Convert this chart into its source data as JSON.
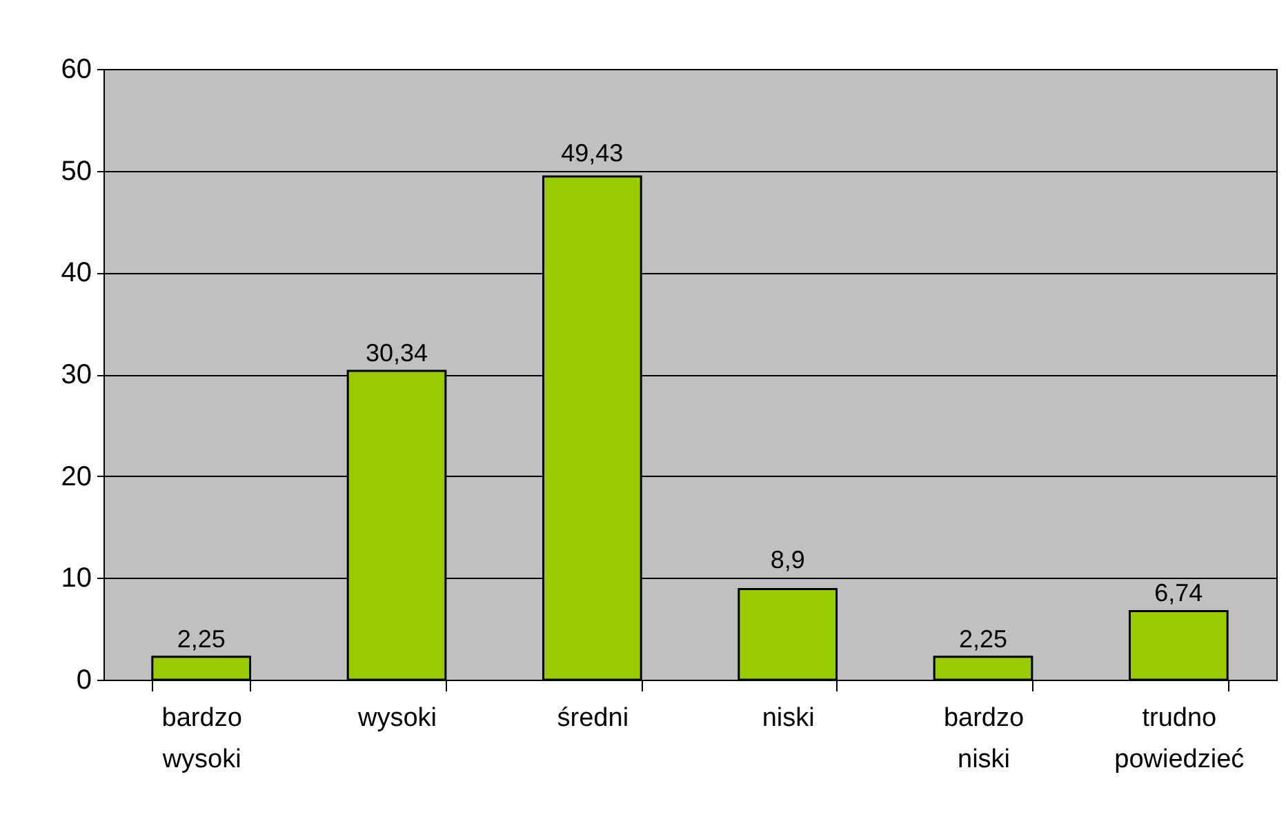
{
  "chart_data": {
    "type": "bar",
    "categories": [
      "bardzo wysoki",
      "wysoki",
      "średni",
      "niski",
      "bardzo niski",
      "trudno powiedzieć"
    ],
    "values": [
      2.25,
      30.34,
      49.43,
      8.9,
      2.25,
      6.74
    ],
    "value_labels": [
      "2,25",
      "30,34",
      "49,43",
      "8,9",
      "2,25",
      "6,74"
    ],
    "color": "#99cc00",
    "ylim": [
      0,
      60
    ],
    "yticks": [
      0,
      10,
      20,
      30,
      40,
      50,
      60
    ],
    "grid": "y"
  }
}
